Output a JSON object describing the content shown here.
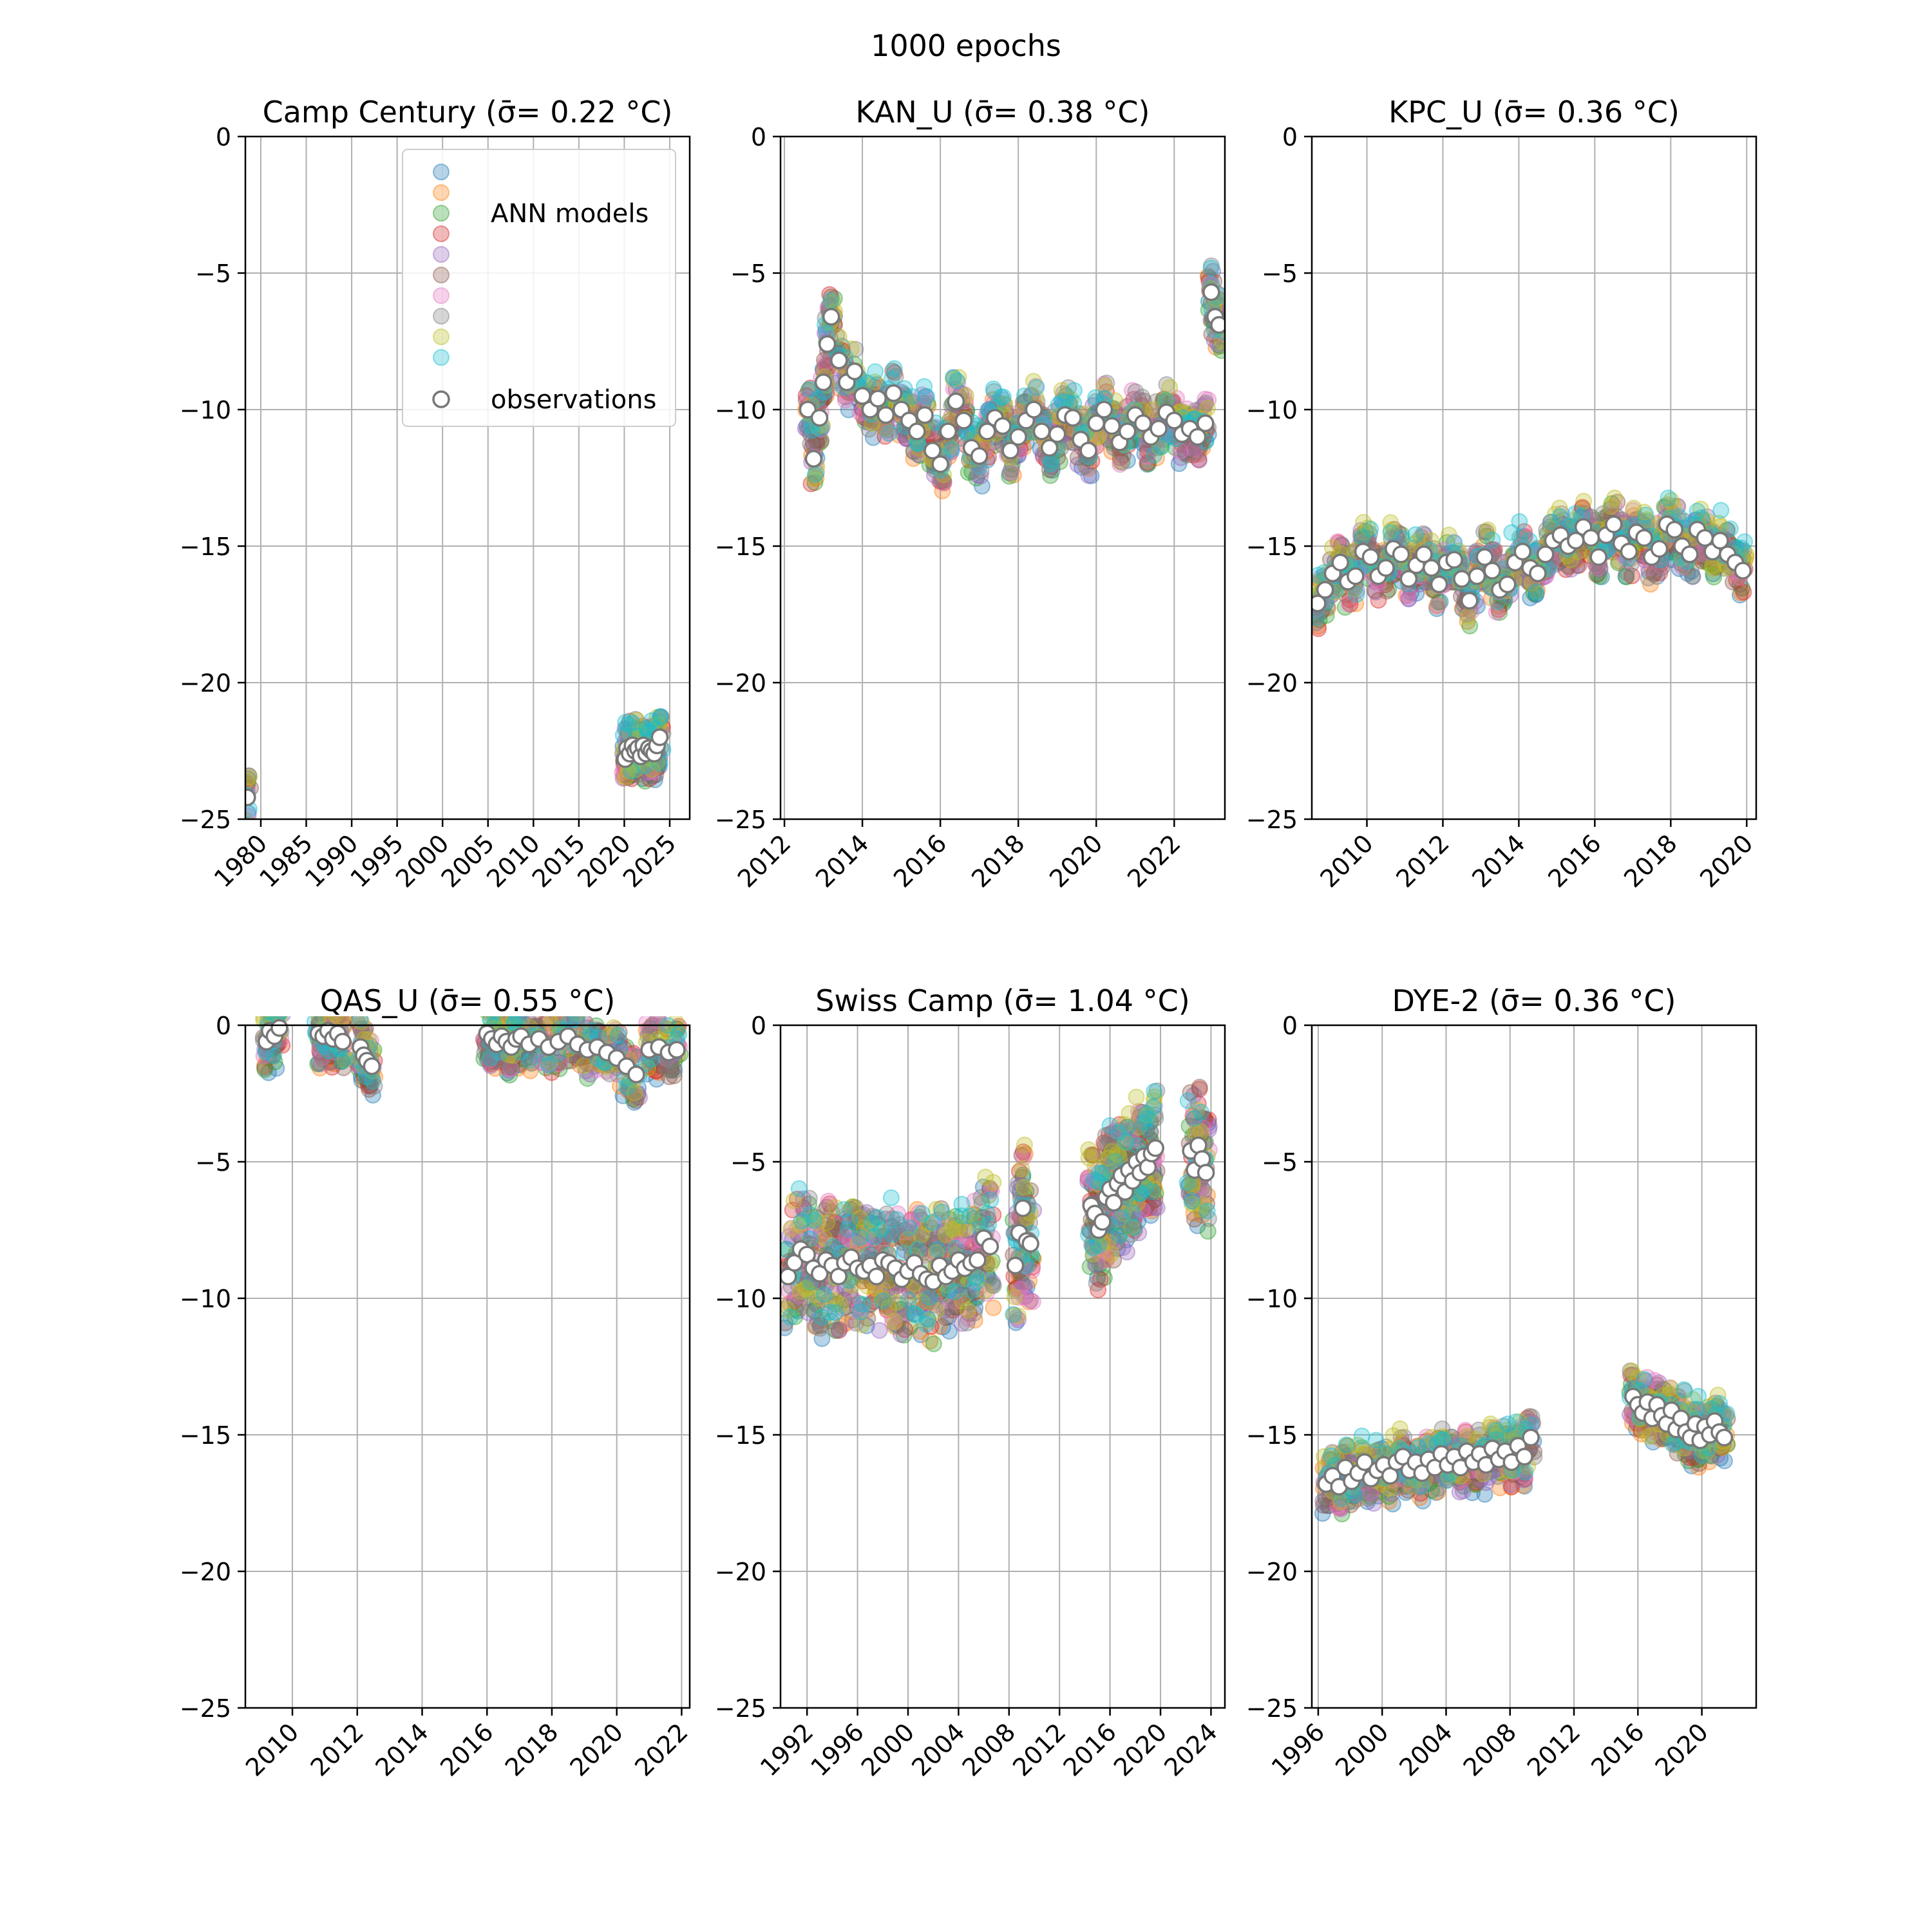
{
  "figure": {
    "suptitle": "1000 epochs",
    "legend": {
      "placement": "upper right of first panel",
      "entries": [
        {
          "label": "ANN models"
        },
        {
          "label": "observations"
        }
      ]
    },
    "model_colors": [
      "#1f77b4",
      "#ff7f0e",
      "#2ca02c",
      "#d62728",
      "#9467bd",
      "#8c564b",
      "#e377c2",
      "#7f7f7f",
      "#bcbd22",
      "#17becf"
    ],
    "observation_style": {
      "face": "#ffffff",
      "edge": "#777777"
    }
  },
  "chart_data": [
    {
      "type": "scatter",
      "title": "Camp Century (σ̄= 0.22 °C)",
      "xlabel": "",
      "ylabel": "",
      "xlim": [
        1978.3,
        2027.2
      ],
      "ylim": [
        -25,
        0
      ],
      "xticks": [
        1980,
        1985,
        1990,
        1995,
        2000,
        2005,
        2010,
        2015,
        2020,
        2025
      ],
      "yticks": [
        0,
        -5,
        -10,
        -15,
        -20,
        -25
      ],
      "grid": true,
      "observations": {
        "x": [
          1978.5,
          2020.1,
          2020.3,
          2020.6,
          2020.9,
          2021.2,
          2021.5,
          2021.8,
          2022.1,
          2022.4,
          2022.7,
          2023.0,
          2023.3,
          2023.6,
          2023.9
        ],
        "y": [
          -24.2,
          -22.8,
          -22.4,
          -22.6,
          -22.3,
          -22.5,
          -22.4,
          -22.7,
          -22.3,
          -22.6,
          -22.4,
          -22.5,
          -22.6,
          -22.3,
          -22.0
        ]
      },
      "models_spread": 0.9
    },
    {
      "type": "scatter",
      "title": "KAN_U (σ̄= 0.38 °C)",
      "xlabel": "",
      "ylabel": "",
      "xlim": [
        2011.9,
        2023.3
      ],
      "ylim": [
        -25,
        0
      ],
      "xticks": [
        2012,
        2014,
        2016,
        2018,
        2020,
        2022
      ],
      "yticks": [
        0,
        -5,
        -10,
        -15,
        -20,
        -25
      ],
      "grid": true,
      "observations": {
        "x": [
          2012.6,
          2012.75,
          2012.9,
          2013.0,
          2013.1,
          2013.2,
          2013.4,
          2013.6,
          2013.8,
          2014.0,
          2014.2,
          2014.4,
          2014.6,
          2014.8,
          2015.0,
          2015.2,
          2015.4,
          2015.6,
          2015.8,
          2016.0,
          2016.2,
          2016.4,
          2016.6,
          2016.8,
          2017.0,
          2017.2,
          2017.4,
          2017.6,
          2017.8,
          2018.0,
          2018.2,
          2018.4,
          2018.6,
          2018.8,
          2019.0,
          2019.2,
          2019.4,
          2019.6,
          2019.8,
          2020.0,
          2020.2,
          2020.4,
          2020.6,
          2020.8,
          2021.0,
          2021.2,
          2021.4,
          2021.6,
          2021.8,
          2022.0,
          2022.2,
          2022.4,
          2022.6,
          2022.8,
          2022.95,
          2023.05,
          2023.15
        ],
        "y": [
          -10.0,
          -11.8,
          -10.3,
          -9.0,
          -7.6,
          -6.6,
          -8.2,
          -9.0,
          -8.6,
          -9.5,
          -10.0,
          -9.6,
          -10.2,
          -9.4,
          -10.0,
          -10.4,
          -10.8,
          -10.2,
          -11.5,
          -12.0,
          -10.8,
          -9.7,
          -10.4,
          -11.4,
          -11.7,
          -10.8,
          -10.3,
          -10.6,
          -11.5,
          -11.0,
          -10.4,
          -10.0,
          -10.8,
          -11.4,
          -10.9,
          -10.2,
          -10.3,
          -11.1,
          -11.5,
          -10.5,
          -10.0,
          -10.6,
          -11.2,
          -10.8,
          -10.2,
          -10.5,
          -11.0,
          -10.7,
          -10.1,
          -10.4,
          -10.9,
          -10.7,
          -11.0,
          -10.5,
          -5.7,
          -6.6,
          -6.9
        ]
      },
      "models_spread": 0.9
    },
    {
      "type": "scatter",
      "title": "KPC_U (σ̄= 0.36 °C)",
      "xlabel": "",
      "ylabel": "",
      "xlim": [
        2008.55,
        2020.25
      ],
      "ylim": [
        -25,
        0
      ],
      "xticks": [
        2010,
        2012,
        2014,
        2016,
        2018,
        2020
      ],
      "yticks": [
        0,
        -5,
        -10,
        -15,
        -20,
        -25
      ],
      "grid": true,
      "observations": {
        "x": [
          2008.7,
          2008.9,
          2009.1,
          2009.3,
          2009.5,
          2009.7,
          2009.9,
          2010.1,
          2010.3,
          2010.5,
          2010.7,
          2010.9,
          2011.1,
          2011.3,
          2011.5,
          2011.7,
          2011.9,
          2012.1,
          2012.3,
          2012.5,
          2012.7,
          2012.9,
          2013.1,
          2013.3,
          2013.5,
          2013.7,
          2013.9,
          2014.1,
          2014.3,
          2014.5,
          2014.7,
          2014.9,
          2015.1,
          2015.3,
          2015.5,
          2015.7,
          2015.9,
          2016.1,
          2016.3,
          2016.5,
          2016.7,
          2016.9,
          2017.1,
          2017.3,
          2017.5,
          2017.7,
          2017.9,
          2018.1,
          2018.3,
          2018.5,
          2018.7,
          2018.9,
          2019.1,
          2019.3,
          2019.5,
          2019.7,
          2019.9
        ],
        "y": [
          -17.1,
          -16.6,
          -16.0,
          -15.6,
          -16.3,
          -16.1,
          -15.2,
          -15.4,
          -16.1,
          -15.8,
          -15.1,
          -15.3,
          -16.2,
          -15.7,
          -15.3,
          -15.8,
          -16.4,
          -15.6,
          -15.5,
          -16.2,
          -17.0,
          -16.1,
          -15.4,
          -15.9,
          -16.6,
          -16.4,
          -15.6,
          -15.2,
          -15.8,
          -16.0,
          -15.3,
          -14.8,
          -14.6,
          -15.0,
          -14.8,
          -14.3,
          -14.7,
          -15.4,
          -14.6,
          -14.2,
          -14.9,
          -15.2,
          -14.5,
          -14.7,
          -15.4,
          -15.1,
          -14.2,
          -14.4,
          -15.0,
          -15.3,
          -14.4,
          -14.7,
          -15.2,
          -14.8,
          -15.3,
          -15.6,
          -15.9
        ]
      },
      "models_spread": 0.9
    },
    {
      "type": "scatter",
      "title": "QAS_U (σ̄= 0.55 °C)",
      "xlabel": "",
      "ylabel": "",
      "xlim": [
        2008.55,
        2022.25
      ],
      "ylim": [
        -25,
        0
      ],
      "xticks": [
        2010,
        2012,
        2014,
        2016,
        2018,
        2020,
        2022
      ],
      "yticks": [
        0,
        -5,
        -10,
        -15,
        -20,
        -25
      ],
      "grid": true,
      "observations": {
        "x": [
          2009.2,
          2009.3,
          2009.45,
          2009.6,
          2010.8,
          2010.95,
          2011.1,
          2011.25,
          2011.4,
          2011.55,
          2012.1,
          2012.2,
          2012.3,
          2012.45,
          2016.0,
          2016.15,
          2016.3,
          2016.45,
          2016.6,
          2016.75,
          2016.9,
          2017.05,
          2017.3,
          2017.6,
          2017.9,
          2018.2,
          2018.5,
          2018.8,
          2019.1,
          2019.4,
          2019.7,
          2020.0,
          2020.3,
          2020.6,
          2021.0,
          2021.3,
          2021.6,
          2021.85
        ],
        "y": [
          -0.6,
          -0.2,
          -0.4,
          -0.1,
          -0.3,
          -0.4,
          -0.2,
          -0.5,
          -0.3,
          -0.6,
          -0.8,
          -1.1,
          -1.3,
          -1.5,
          -0.3,
          -0.5,
          -0.7,
          -0.4,
          -0.6,
          -0.8,
          -0.5,
          -0.4,
          -0.7,
          -0.5,
          -0.8,
          -0.6,
          -0.4,
          -0.7,
          -0.9,
          -0.8,
          -1.0,
          -1.2,
          -1.5,
          -1.8,
          -0.9,
          -0.8,
          -1.0,
          -0.9
        ]
      },
      "models_spread": 1.0
    },
    {
      "type": "scatter",
      "title": "Swiss Camp (σ̄= 1.04 °C)",
      "xlabel": "",
      "ylabel": "",
      "xlim": [
        1989.9,
        2025.1
      ],
      "ylim": [
        -25,
        0
      ],
      "xticks": [
        1992,
        1996,
        2000,
        2004,
        2008,
        2012,
        2016,
        2020,
        2024
      ],
      "yticks": [
        0,
        -5,
        -10,
        -15,
        -20,
        -25
      ],
      "grid": true,
      "observations": {
        "x": [
          1990.5,
          1991.0,
          1991.5,
          1992.0,
          1992.5,
          1993.0,
          1993.5,
          1994.0,
          1994.5,
          1995.0,
          1995.5,
          1996.0,
          1996.5,
          1997.0,
          1997.5,
          1998.0,
          1998.5,
          1999.0,
          1999.5,
          2000.0,
          2000.5,
          2001.0,
          2001.5,
          2002.0,
          2002.5,
          2003.0,
          2003.5,
          2004.0,
          2004.5,
          2005.0,
          2005.5,
          2006.0,
          2006.5,
          2008.5,
          2008.8,
          2009.1,
          2009.4,
          2009.7,
          2014.5,
          2014.8,
          2015.1,
          2015.4,
          2015.7,
          2016.0,
          2016.3,
          2016.6,
          2016.9,
          2017.2,
          2017.5,
          2017.8,
          2018.1,
          2018.4,
          2018.7,
          2019.0,
          2019.3,
          2019.6,
          2022.4,
          2022.7,
          2023.0,
          2023.3,
          2023.6
        ],
        "y": [
          -9.2,
          -8.7,
          -8.2,
          -8.4,
          -8.9,
          -9.1,
          -8.6,
          -8.8,
          -9.2,
          -8.7,
          -8.5,
          -8.9,
          -9.0,
          -8.8,
          -9.2,
          -8.6,
          -8.7,
          -8.9,
          -9.3,
          -9.0,
          -8.7,
          -9.1,
          -9.3,
          -9.4,
          -8.8,
          -9.2,
          -9.0,
          -8.6,
          -8.9,
          -8.7,
          -8.6,
          -7.8,
          -8.1,
          -8.8,
          -7.6,
          -6.7,
          -7.9,
          -8.0,
          -6.6,
          -6.9,
          -7.5,
          -7.2,
          -6.3,
          -6.0,
          -6.5,
          -5.8,
          -5.5,
          -6.1,
          -5.3,
          -5.7,
          -5.0,
          -5.4,
          -4.8,
          -5.2,
          -4.7,
          -4.5,
          -4.6,
          -5.3,
          -4.4,
          -4.9,
          -5.4
        ]
      },
      "models_spread": 2.2
    },
    {
      "type": "scatter",
      "title": "DYE-2 (σ̄= 0.36 °C)",
      "xlabel": "",
      "ylabel": "",
      "xlim": [
        1995.6,
        2023.4
      ],
      "ylim": [
        -25,
        0
      ],
      "xticks": [
        1996,
        2000,
        2004,
        2008,
        2012,
        2016,
        2020
      ],
      "yticks": [
        0,
        -5,
        -10,
        -15,
        -20,
        -25
      ],
      "grid": true,
      "observations": {
        "x": [
          1996.5,
          1996.9,
          1997.3,
          1997.7,
          1998.1,
          1998.5,
          1998.9,
          1999.3,
          1999.7,
          2000.1,
          2000.5,
          2000.9,
          2001.3,
          2001.7,
          2002.1,
          2002.5,
          2002.9,
          2003.3,
          2003.7,
          2004.1,
          2004.5,
          2004.9,
          2005.3,
          2005.7,
          2006.1,
          2006.5,
          2006.9,
          2007.3,
          2007.7,
          2008.1,
          2008.5,
          2008.9,
          2009.3,
          2015.7,
          2016.0,
          2016.3,
          2016.6,
          2016.9,
          2017.2,
          2017.5,
          2017.8,
          2018.1,
          2018.4,
          2018.7,
          2019.0,
          2019.3,
          2019.6,
          2019.9,
          2020.2,
          2020.5,
          2020.8,
          2021.1,
          2021.4
        ],
        "y": [
          -16.8,
          -16.5,
          -16.9,
          -16.2,
          -16.7,
          -16.4,
          -16.0,
          -16.6,
          -16.3,
          -16.1,
          -16.5,
          -16.0,
          -15.8,
          -16.3,
          -16.0,
          -16.4,
          -15.9,
          -16.2,
          -15.7,
          -16.1,
          -15.8,
          -16.2,
          -15.6,
          -16.0,
          -15.7,
          -16.1,
          -15.5,
          -15.9,
          -15.6,
          -16.0,
          -15.4,
          -15.8,
          -15.1,
          -13.6,
          -13.9,
          -14.2,
          -13.8,
          -14.4,
          -13.9,
          -14.3,
          -14.6,
          -14.1,
          -14.8,
          -14.4,
          -14.9,
          -15.1,
          -14.6,
          -15.2,
          -14.7,
          -15.0,
          -14.5,
          -14.9,
          -15.1
        ]
      },
      "models_spread": 0.9
    }
  ]
}
